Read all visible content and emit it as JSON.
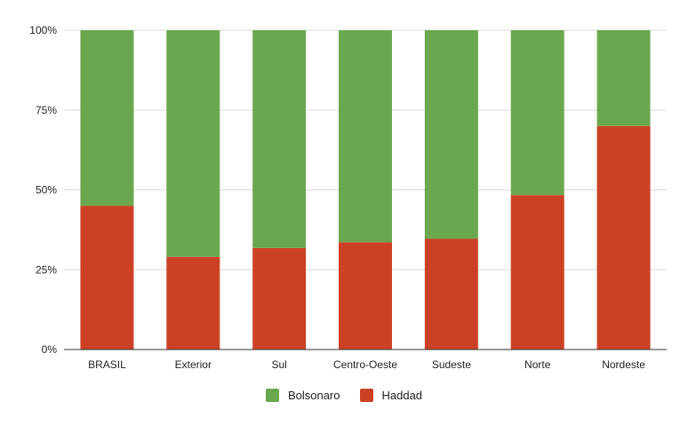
{
  "chart_data": {
    "type": "bar",
    "stacked": true,
    "normalized": true,
    "title": "",
    "xlabel": "",
    "ylabel": "",
    "ylim": [
      0,
      100
    ],
    "yticks": [
      "0%",
      "25%",
      "50%",
      "75%",
      "100%"
    ],
    "categories": [
      "BRASIL",
      "Exterior",
      "Sul",
      "Centro-Oeste",
      "Sudeste",
      "Norte",
      "Nordeste"
    ],
    "series": [
      {
        "name": "Haddad",
        "color": "#cc4125",
        "values": [
          45.0,
          29.0,
          31.8,
          33.6,
          34.7,
          48.4,
          70.0
        ]
      },
      {
        "name": "Bolsonaro",
        "color": "#6aa84f",
        "values": [
          55.0,
          71.0,
          68.2,
          66.4,
          65.3,
          51.6,
          30.0
        ]
      }
    ],
    "grid": true,
    "legend_position": "bottom"
  },
  "legend": [
    {
      "label": "Bolsonaro",
      "color": "#6aa84f"
    },
    {
      "label": "Haddad",
      "color": "#cc4125"
    }
  ]
}
